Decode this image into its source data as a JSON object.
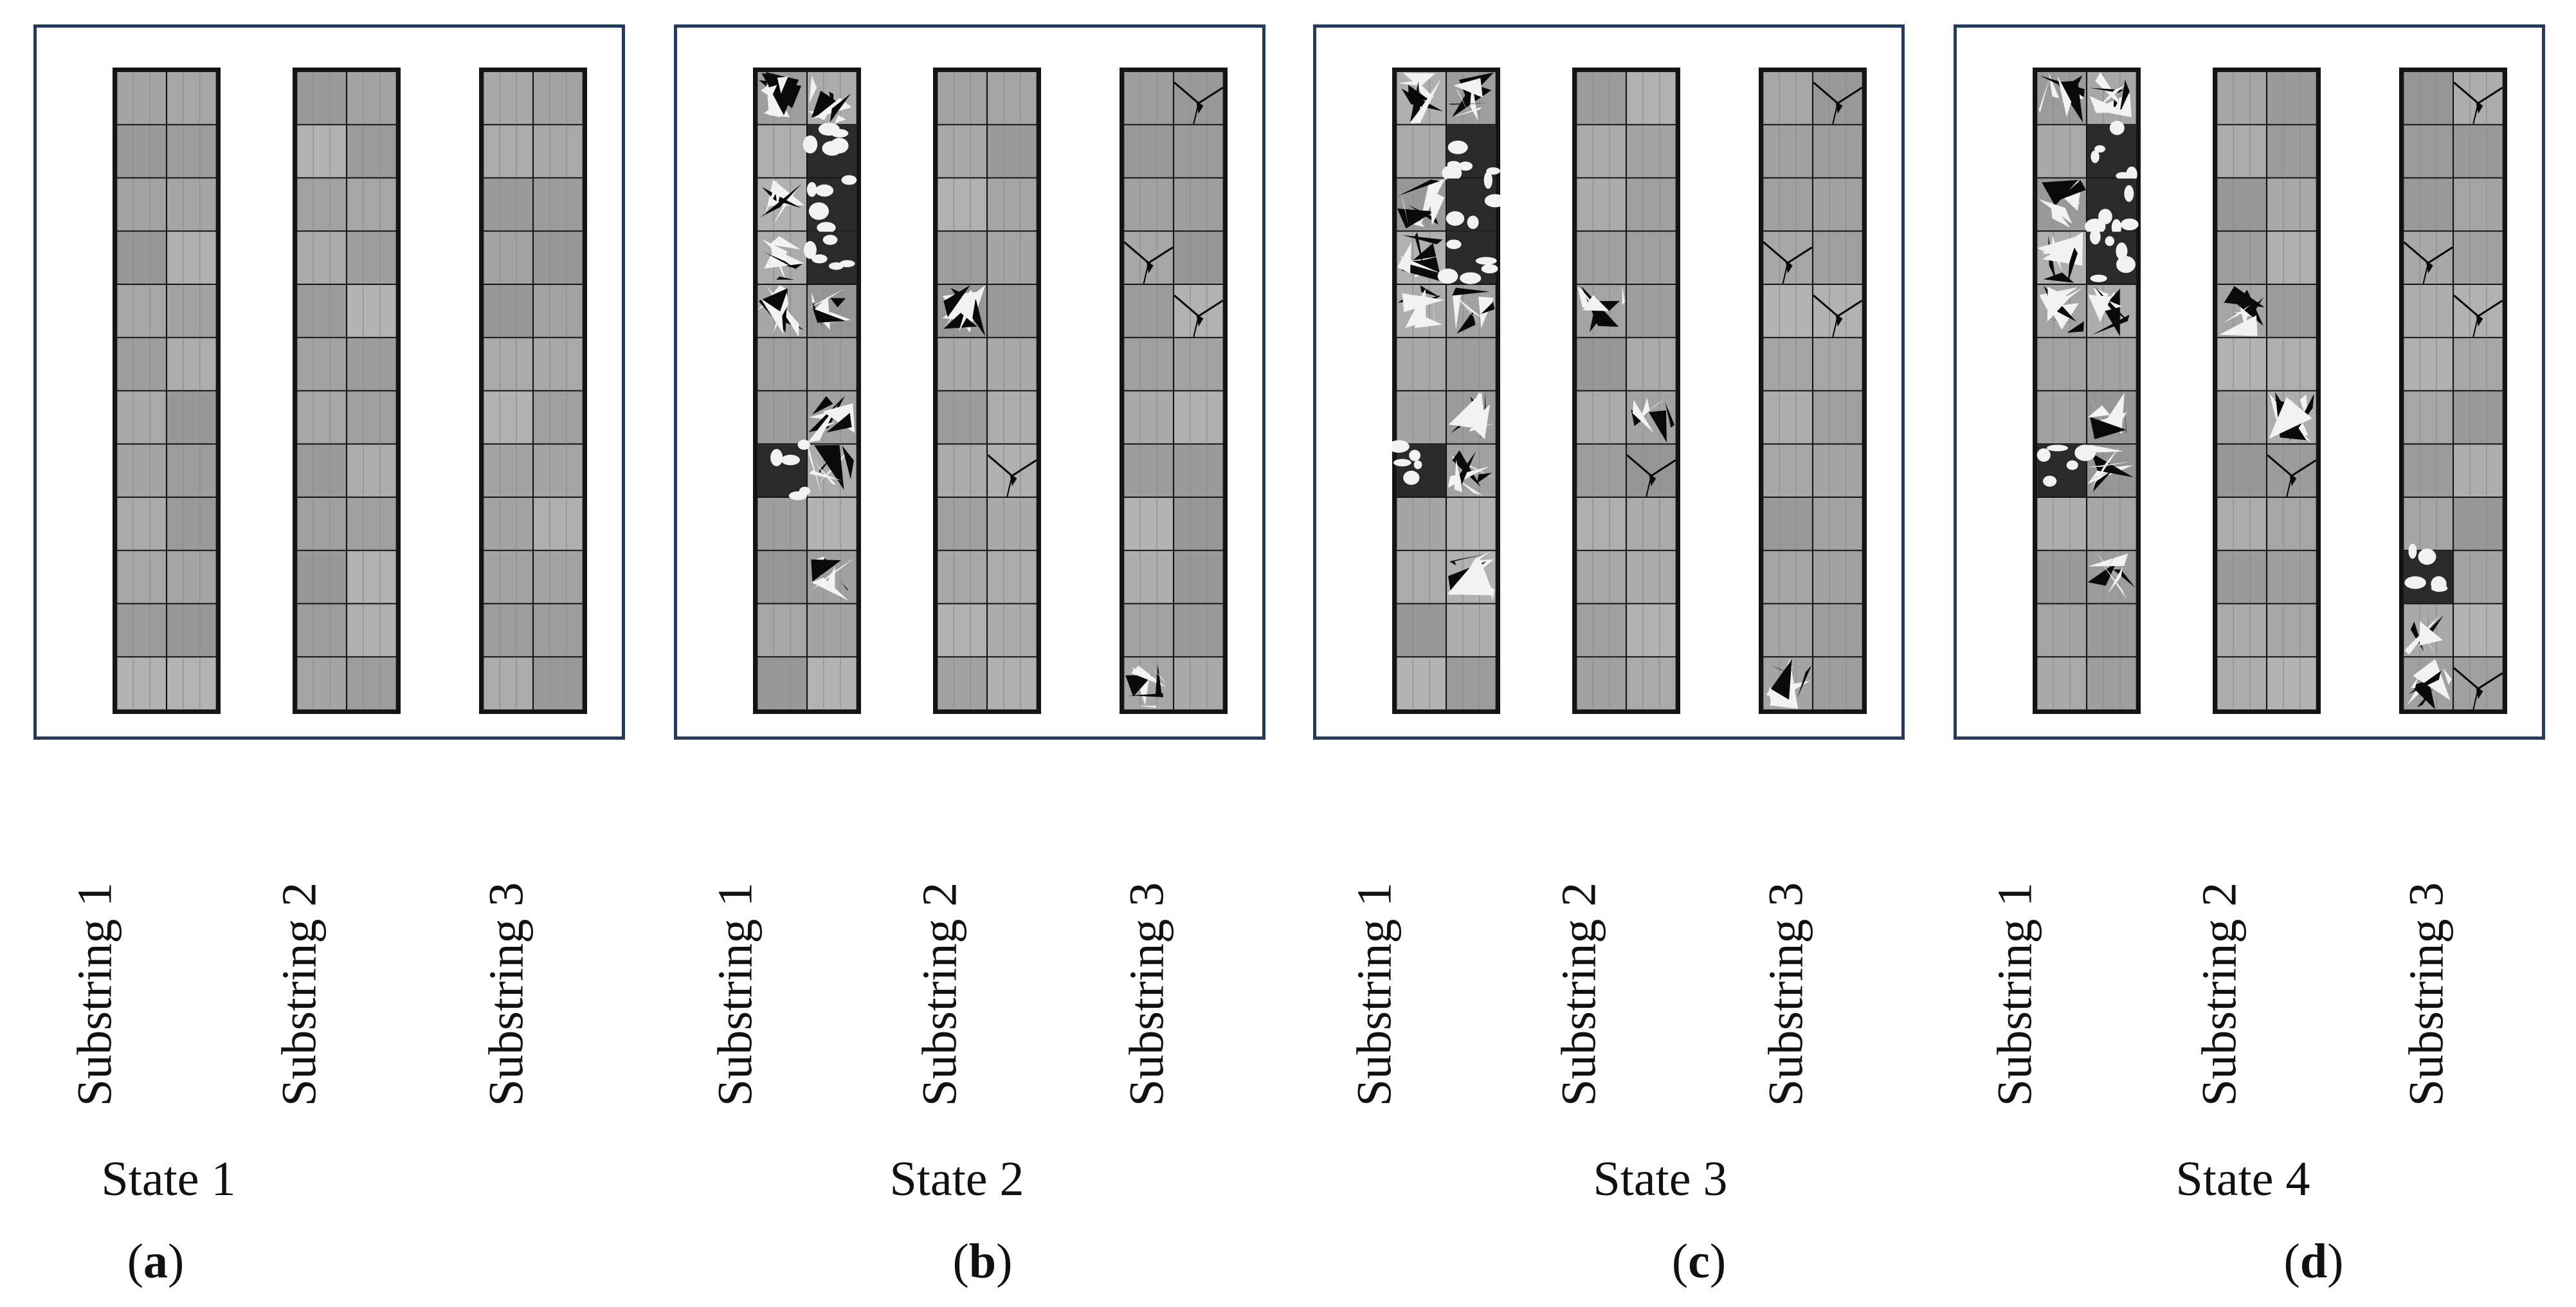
{
  "panels": [
    {
      "id": "a",
      "tag_open": "(",
      "tag_letter": "a",
      "tag_close": ")",
      "state": "State 1",
      "substrings": [
        "Substring 1",
        "Substring 2",
        "Substring 3"
      ]
    },
    {
      "id": "b",
      "tag_open": "(",
      "tag_letter": "b",
      "tag_close": ")",
      "state": "State 2",
      "substrings": [
        "Substring 1",
        "Substring 2",
        "Substring 3"
      ]
    },
    {
      "id": "c",
      "tag_open": "(",
      "tag_letter": "c",
      "tag_close": ")",
      "state": "State 3",
      "substrings": [
        "Substring 1",
        "Substring 2",
        "Substring 3"
      ]
    },
    {
      "id": "d",
      "tag_open": "(",
      "tag_letter": "d",
      "tag_close": ")",
      "state": "State 4",
      "substrings": [
        "Substring 1",
        "Substring 2",
        "Substring 3"
      ]
    }
  ],
  "colors": {
    "frame": "#243a5e",
    "cell_base": "#a9a9a9",
    "crack": "#0a0a0a",
    "bright": "#f2f2f2"
  },
  "el_images": {
    "grid": {
      "columns": 2,
      "rows": 12
    },
    "defects": {
      "a": [
        [],
        [],
        []
      ],
      "b": [
        [
          [
            0,
            0,
            "mixed"
          ],
          [
            1,
            0,
            "mixed"
          ],
          [
            1,
            1,
            "dark"
          ],
          [
            0,
            2,
            "mixed"
          ],
          [
            1,
            2,
            "dark"
          ],
          [
            0,
            3,
            "mixed"
          ],
          [
            1,
            3,
            "dark"
          ],
          [
            0,
            4,
            "mixed"
          ],
          [
            1,
            4,
            "mixed"
          ],
          [
            1,
            6,
            "mixed"
          ],
          [
            1,
            7,
            "mixed"
          ],
          [
            0,
            7,
            "dark"
          ],
          [
            1,
            9,
            "mixed"
          ]
        ],
        [
          [
            0,
            4,
            "mixed"
          ],
          [
            1,
            7,
            "crack"
          ]
        ],
        [
          [
            1,
            0,
            "crack"
          ],
          [
            0,
            3,
            "crack"
          ],
          [
            1,
            4,
            "crack"
          ],
          [
            0,
            11,
            "mixed"
          ]
        ]
      ],
      "c": [
        [
          [
            0,
            0,
            "mixed"
          ],
          [
            1,
            0,
            "mixed"
          ],
          [
            1,
            1,
            "dark"
          ],
          [
            0,
            2,
            "mixed"
          ],
          [
            1,
            2,
            "dark"
          ],
          [
            0,
            3,
            "mixed"
          ],
          [
            1,
            3,
            "dark"
          ],
          [
            0,
            4,
            "mixed"
          ],
          [
            1,
            4,
            "mixed"
          ],
          [
            1,
            6,
            "mixed"
          ],
          [
            1,
            7,
            "mixed"
          ],
          [
            0,
            7,
            "dark"
          ],
          [
            1,
            9,
            "mixed"
          ]
        ],
        [
          [
            0,
            4,
            "mixed"
          ],
          [
            1,
            6,
            "mixed"
          ],
          [
            1,
            7,
            "crack"
          ]
        ],
        [
          [
            1,
            0,
            "crack"
          ],
          [
            0,
            3,
            "crack"
          ],
          [
            1,
            4,
            "crack"
          ],
          [
            0,
            11,
            "mixed"
          ]
        ]
      ],
      "d": [
        [
          [
            0,
            0,
            "mixed"
          ],
          [
            1,
            0,
            "mixed"
          ],
          [
            1,
            1,
            "dark"
          ],
          [
            0,
            2,
            "mixed"
          ],
          [
            1,
            2,
            "dark"
          ],
          [
            0,
            3,
            "mixed"
          ],
          [
            1,
            3,
            "dark"
          ],
          [
            0,
            4,
            "mixed"
          ],
          [
            1,
            4,
            "mixed"
          ],
          [
            1,
            6,
            "mixed"
          ],
          [
            1,
            7,
            "mixed"
          ],
          [
            0,
            7,
            "dark"
          ],
          [
            1,
            9,
            "mixed"
          ]
        ],
        [
          [
            0,
            4,
            "mixed"
          ],
          [
            1,
            6,
            "mixed"
          ],
          [
            1,
            7,
            "crack"
          ]
        ],
        [
          [
            1,
            0,
            "crack"
          ],
          [
            0,
            3,
            "crack"
          ],
          [
            1,
            4,
            "crack"
          ],
          [
            0,
            9,
            "dark"
          ],
          [
            0,
            10,
            "mixed"
          ],
          [
            0,
            11,
            "mixed"
          ],
          [
            1,
            11,
            "crack"
          ]
        ]
      ]
    }
  }
}
